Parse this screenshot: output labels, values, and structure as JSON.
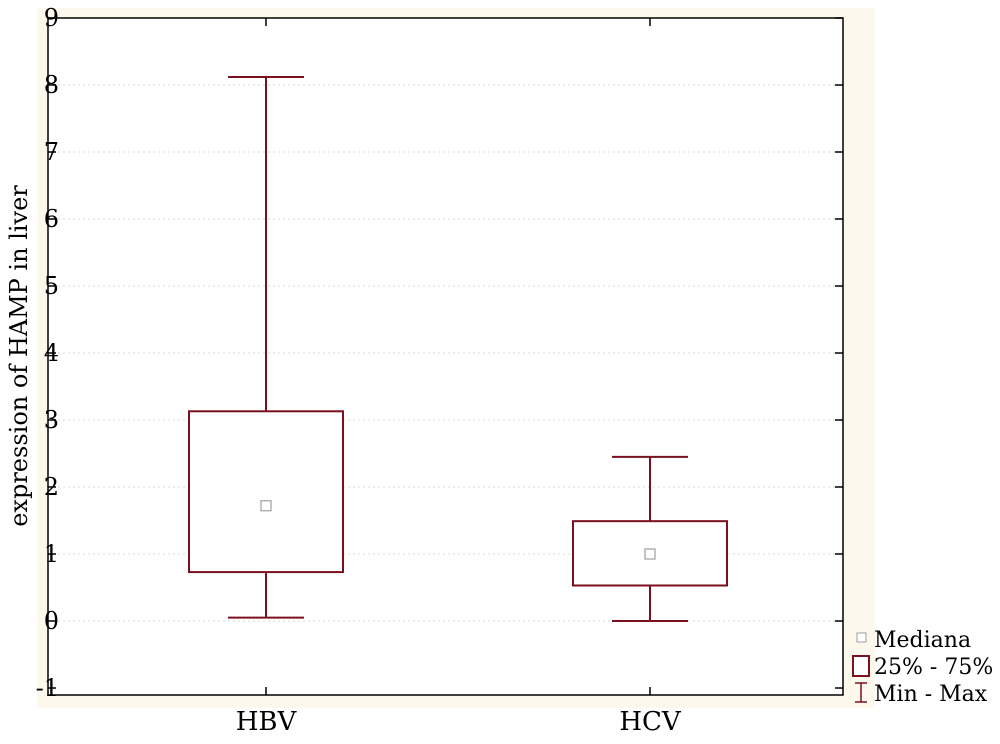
{
  "colors": {
    "box": "#7a1020",
    "median": "#9e9e9e",
    "plot_background": "#fdf8ec",
    "grid": "#d9d9d9"
  },
  "chart_data": {
    "type": "boxplot",
    "title": "",
    "xlabel": "",
    "ylabel": "expression of HAMP in liver",
    "ylim": [
      -1,
      9
    ],
    "yticks": [
      "-1",
      "0",
      "1",
      "2",
      "3",
      "4",
      "5",
      "6",
      "7",
      "8",
      "9"
    ],
    "grid": true,
    "legend_position": "bottom-right",
    "categories": [
      "HBV",
      "HCV"
    ],
    "series": [
      {
        "category": "HBV",
        "min": 0.05,
        "q1": 0.73,
        "median": 1.72,
        "q3": 3.13,
        "max": 8.12
      },
      {
        "category": "HCV",
        "min": 0.0,
        "q1": 0.53,
        "median": 1.0,
        "q3": 1.49,
        "max": 2.45
      }
    ],
    "legend": {
      "median": "Mediana",
      "box": "25% - 75%",
      "whisker": "Min - Max"
    }
  }
}
